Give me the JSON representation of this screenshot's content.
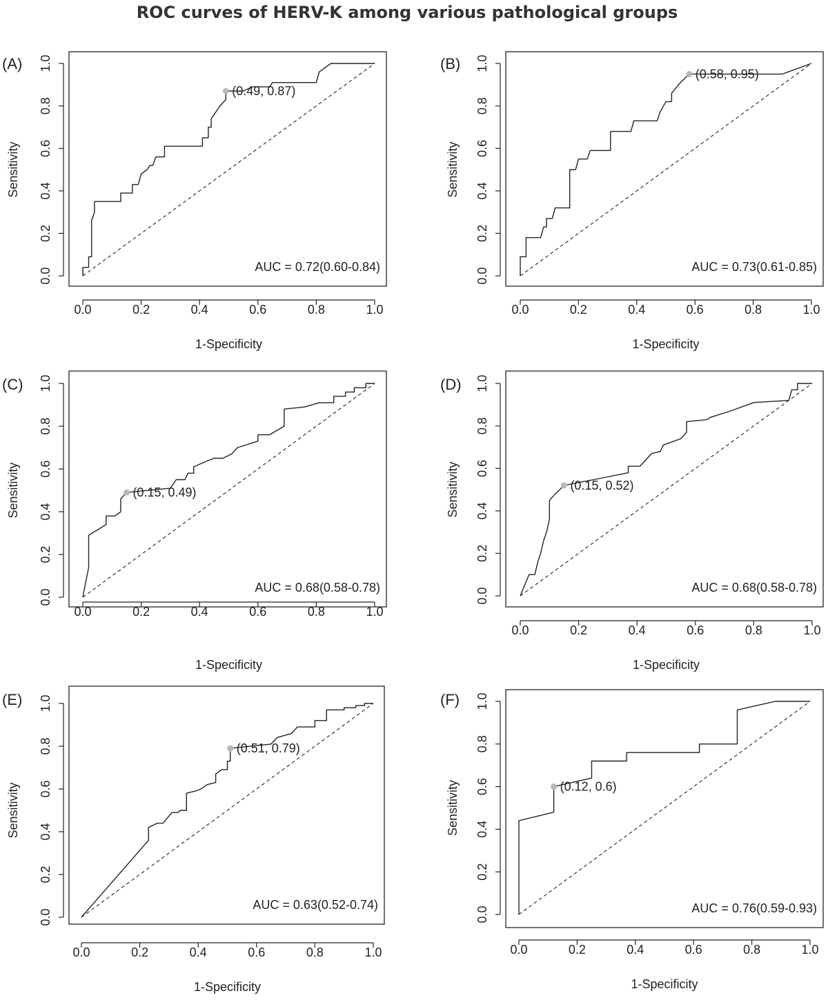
{
  "title": "ROC curves of HERV-K among various pathological groups",
  "chart_data": [
    {
      "type": "line",
      "panel_label": "(A)",
      "xlabel": "1-Specificity",
      "ylabel": "Sensitivity",
      "xlim": [
        0,
        1
      ],
      "ylim": [
        0,
        1
      ],
      "x_ticks": [
        "0.0",
        "0.2",
        "0.4",
        "0.6",
        "0.8",
        "1.0"
      ],
      "y_ticks": [
        "0.0",
        "0.2",
        "0.4",
        "0.6",
        "0.8",
        "1.0"
      ],
      "auc_text": "AUC = 0.72(0.60-0.84)",
      "cutoff": {
        "x": 0.49,
        "y": 0.87,
        "label": "(0.49, 0.87)"
      },
      "roc_points": [
        [
          0,
          0
        ],
        [
          0,
          0.04
        ],
        [
          0.02,
          0.04
        ],
        [
          0.02,
          0.09
        ],
        [
          0.03,
          0.09
        ],
        [
          0.03,
          0.26
        ],
        [
          0.04,
          0.3
        ],
        [
          0.04,
          0.35
        ],
        [
          0.13,
          0.35
        ],
        [
          0.13,
          0.39
        ],
        [
          0.17,
          0.39
        ],
        [
          0.17,
          0.43
        ],
        [
          0.19,
          0.43
        ],
        [
          0.2,
          0.48
        ],
        [
          0.22,
          0.5
        ],
        [
          0.23,
          0.52
        ],
        [
          0.24,
          0.52
        ],
        [
          0.25,
          0.56
        ],
        [
          0.28,
          0.56
        ],
        [
          0.28,
          0.61
        ],
        [
          0.41,
          0.61
        ],
        [
          0.41,
          0.65
        ],
        [
          0.43,
          0.65
        ],
        [
          0.43,
          0.7
        ],
        [
          0.44,
          0.7
        ],
        [
          0.44,
          0.74
        ],
        [
          0.46,
          0.78
        ],
        [
          0.47,
          0.8
        ],
        [
          0.49,
          0.83
        ],
        [
          0.49,
          0.87
        ],
        [
          0.55,
          0.87
        ],
        [
          0.58,
          0.89
        ],
        [
          0.64,
          0.89
        ],
        [
          0.65,
          0.91
        ],
        [
          0.8,
          0.91
        ],
        [
          0.81,
          0.96
        ],
        [
          0.85,
          1
        ],
        [
          1,
          1
        ]
      ]
    },
    {
      "type": "line",
      "panel_label": "(B)",
      "xlabel": "1-Specificity",
      "ylabel": "Sensitivity",
      "xlim": [
        0,
        1
      ],
      "ylim": [
        0,
        1
      ],
      "x_ticks": [
        "0.0",
        "0.2",
        "0.4",
        "0.6",
        "0.8",
        "1.0"
      ],
      "y_ticks": [
        "0.0",
        "0.2",
        "0.4",
        "0.6",
        "0.8",
        "1.0"
      ],
      "auc_text": "AUC = 0.73(0.61-0.85)",
      "cutoff": {
        "x": 0.58,
        "y": 0.95,
        "label": "(0.58, 0.95)"
      },
      "roc_points": [
        [
          0,
          0
        ],
        [
          0,
          0.09
        ],
        [
          0.02,
          0.09
        ],
        [
          0.02,
          0.18
        ],
        [
          0.07,
          0.18
        ],
        [
          0.08,
          0.23
        ],
        [
          0.09,
          0.23
        ],
        [
          0.09,
          0.27
        ],
        [
          0.11,
          0.27
        ],
        [
          0.12,
          0.32
        ],
        [
          0.17,
          0.32
        ],
        [
          0.17,
          0.5
        ],
        [
          0.19,
          0.5
        ],
        [
          0.2,
          0.55
        ],
        [
          0.23,
          0.55
        ],
        [
          0.24,
          0.59
        ],
        [
          0.31,
          0.59
        ],
        [
          0.31,
          0.68
        ],
        [
          0.38,
          0.68
        ],
        [
          0.39,
          0.73
        ],
        [
          0.47,
          0.73
        ],
        [
          0.48,
          0.77
        ],
        [
          0.5,
          0.82
        ],
        [
          0.52,
          0.82
        ],
        [
          0.52,
          0.86
        ],
        [
          0.55,
          0.91
        ],
        [
          0.58,
          0.95
        ],
        [
          0.9,
          0.95
        ],
        [
          1,
          1
        ]
      ]
    },
    {
      "type": "line",
      "panel_label": "(C)",
      "xlabel": "1-Specificity",
      "ylabel": "Sensitivity",
      "xlim": [
        0,
        1
      ],
      "ylim": [
        0,
        1
      ],
      "x_ticks": [
        "0.0",
        "0.2",
        "0.4",
        "0.6",
        "0.8",
        "1.0"
      ],
      "y_ticks": [
        "0.0",
        "0.2",
        "0.4",
        "0.6",
        "0.8",
        "1.0"
      ],
      "auc_text": "AUC = 0.68(0.58-0.78)",
      "cutoff": {
        "x": 0.15,
        "y": 0.49,
        "label": "(0.15, 0.49)"
      },
      "roc_points": [
        [
          0,
          0
        ],
        [
          0.02,
          0.14
        ],
        [
          0.02,
          0.29
        ],
        [
          0.08,
          0.34
        ],
        [
          0.08,
          0.38
        ],
        [
          0.11,
          0.38
        ],
        [
          0.13,
          0.4
        ],
        [
          0.13,
          0.46
        ],
        [
          0.15,
          0.49
        ],
        [
          0.3,
          0.51
        ],
        [
          0.32,
          0.55
        ],
        [
          0.35,
          0.55
        ],
        [
          0.36,
          0.58
        ],
        [
          0.38,
          0.58
        ],
        [
          0.38,
          0.61
        ],
        [
          0.43,
          0.64
        ],
        [
          0.45,
          0.65
        ],
        [
          0.48,
          0.65
        ],
        [
          0.51,
          0.67
        ],
        [
          0.53,
          0.7
        ],
        [
          0.6,
          0.73
        ],
        [
          0.6,
          0.76
        ],
        [
          0.64,
          0.76
        ],
        [
          0.69,
          0.8
        ],
        [
          0.69,
          0.88
        ],
        [
          0.76,
          0.89
        ],
        [
          0.81,
          0.91
        ],
        [
          0.86,
          0.91
        ],
        [
          0.86,
          0.94
        ],
        [
          0.9,
          0.94
        ],
        [
          0.9,
          0.96
        ],
        [
          0.93,
          0.96
        ],
        [
          0.93,
          0.98
        ],
        [
          0.97,
          0.98
        ],
        [
          0.97,
          1
        ],
        [
          1,
          1
        ]
      ]
    },
    {
      "type": "line",
      "panel_label": "(D)",
      "xlabel": "1-Specificity",
      "ylabel": "Sensitivity",
      "xlim": [
        0,
        1
      ],
      "ylim": [
        0,
        1
      ],
      "x_ticks": [
        "0.0",
        "0.2",
        "0.4",
        "0.6",
        "0.8",
        "1.0"
      ],
      "y_ticks": [
        "0.0",
        "0.2",
        "0.4",
        "0.6",
        "0.8",
        "1.0"
      ],
      "auc_text": "AUC = 0.68(0.58-0.78)",
      "cutoff": {
        "x": 0.15,
        "y": 0.52,
        "label": "(0.15, 0.52)"
      },
      "roc_points": [
        [
          0,
          0
        ],
        [
          0.03,
          0.1
        ],
        [
          0.05,
          0.1
        ],
        [
          0.06,
          0.16
        ],
        [
          0.07,
          0.2
        ],
        [
          0.08,
          0.26
        ],
        [
          0.09,
          0.3
        ],
        [
          0.1,
          0.36
        ],
        [
          0.1,
          0.45
        ],
        [
          0.12,
          0.48
        ],
        [
          0.15,
          0.52
        ],
        [
          0.3,
          0.56
        ],
        [
          0.37,
          0.58
        ],
        [
          0.37,
          0.61
        ],
        [
          0.41,
          0.61
        ],
        [
          0.43,
          0.64
        ],
        [
          0.45,
          0.67
        ],
        [
          0.48,
          0.68
        ],
        [
          0.49,
          0.71
        ],
        [
          0.55,
          0.74
        ],
        [
          0.57,
          0.77
        ],
        [
          0.57,
          0.82
        ],
        [
          0.64,
          0.83
        ],
        [
          0.65,
          0.84
        ],
        [
          0.72,
          0.87
        ],
        [
          0.8,
          0.91
        ],
        [
          0.92,
          0.92
        ],
        [
          0.93,
          0.97
        ],
        [
          0.95,
          0.97
        ],
        [
          0.95,
          1
        ],
        [
          1,
          1
        ]
      ]
    },
    {
      "type": "line",
      "panel_label": "(E)",
      "xlabel": "1-Specificity",
      "ylabel": "Sensitivity",
      "xlim": [
        0,
        1
      ],
      "ylim": [
        0,
        1
      ],
      "x_ticks": [
        "0.0",
        "0.2",
        "0.4",
        "0.6",
        "0.8",
        "1.0"
      ],
      "y_ticks": [
        "0.0",
        "0.2",
        "0.4",
        "0.6",
        "0.8",
        "1.0"
      ],
      "auc_text": "AUC = 0.63(0.52-0.74)",
      "cutoff": {
        "x": 0.51,
        "y": 0.79,
        "label": "(0.51, 0.79)"
      },
      "roc_points": [
        [
          0,
          0
        ],
        [
          0.23,
          0.36
        ],
        [
          0.23,
          0.42
        ],
        [
          0.26,
          0.44
        ],
        [
          0.28,
          0.44
        ],
        [
          0.31,
          0.49
        ],
        [
          0.33,
          0.49
        ],
        [
          0.34,
          0.5
        ],
        [
          0.36,
          0.5
        ],
        [
          0.36,
          0.54
        ],
        [
          0.36,
          0.58
        ],
        [
          0.39,
          0.59
        ],
        [
          0.41,
          0.6
        ],
        [
          0.42,
          0.61
        ],
        [
          0.43,
          0.62
        ],
        [
          0.46,
          0.63
        ],
        [
          0.46,
          0.67
        ],
        [
          0.48,
          0.69
        ],
        [
          0.5,
          0.69
        ],
        [
          0.5,
          0.73
        ],
        [
          0.51,
          0.73
        ],
        [
          0.51,
          0.79
        ],
        [
          0.65,
          0.81
        ],
        [
          0.67,
          0.84
        ],
        [
          0.72,
          0.86
        ],
        [
          0.74,
          0.89
        ],
        [
          0.8,
          0.89
        ],
        [
          0.8,
          0.92
        ],
        [
          0.84,
          0.92
        ],
        [
          0.84,
          0.97
        ],
        [
          0.9,
          0.97
        ],
        [
          0.9,
          0.98
        ],
        [
          0.94,
          0.98
        ],
        [
          0.94,
          0.99
        ],
        [
          0.97,
          0.99
        ],
        [
          0.97,
          1
        ],
        [
          1,
          1
        ]
      ]
    },
    {
      "type": "line",
      "panel_label": "(F)",
      "xlabel": "1-Specificity",
      "ylabel": "Sensitivity",
      "xlim": [
        0,
        1
      ],
      "ylim": [
        0,
        1
      ],
      "x_ticks": [
        "0.0",
        "0.2",
        "0.4",
        "0.6",
        "0.8",
        "1.0"
      ],
      "y_ticks": [
        "0.0",
        "0.2",
        "0.4",
        "0.6",
        "0.8",
        "1.0"
      ],
      "auc_text": "AUC = 0.76(0.59-0.93)",
      "cutoff": {
        "x": 0.12,
        "y": 0.6,
        "label": "(0.12, 0.6)"
      },
      "roc_points": [
        [
          0,
          0
        ],
        [
          0,
          0.44
        ],
        [
          0.12,
          0.48
        ],
        [
          0.12,
          0.6
        ],
        [
          0.25,
          0.64
        ],
        [
          0.25,
          0.72
        ],
        [
          0.37,
          0.72
        ],
        [
          0.37,
          0.76
        ],
        [
          0.62,
          0.76
        ],
        [
          0.62,
          0.8
        ],
        [
          0.75,
          0.8
        ],
        [
          0.75,
          0.96
        ],
        [
          0.88,
          1
        ],
        [
          1,
          1
        ]
      ]
    }
  ]
}
